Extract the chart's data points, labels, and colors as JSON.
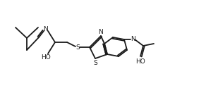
{
  "bg_color": "#ffffff",
  "line_color": "#1a1a1a",
  "lw": 1.3,
  "atoms": {
    "N_label": "N",
    "S_label": "S",
    "O_label": "O",
    "HO_label": "HO",
    "N2_label": "N",
    "S2_label": "S",
    "N3_label": "N",
    "O2_label": "O",
    "HO2_label": "HO"
  },
  "fontsize": 6.5
}
